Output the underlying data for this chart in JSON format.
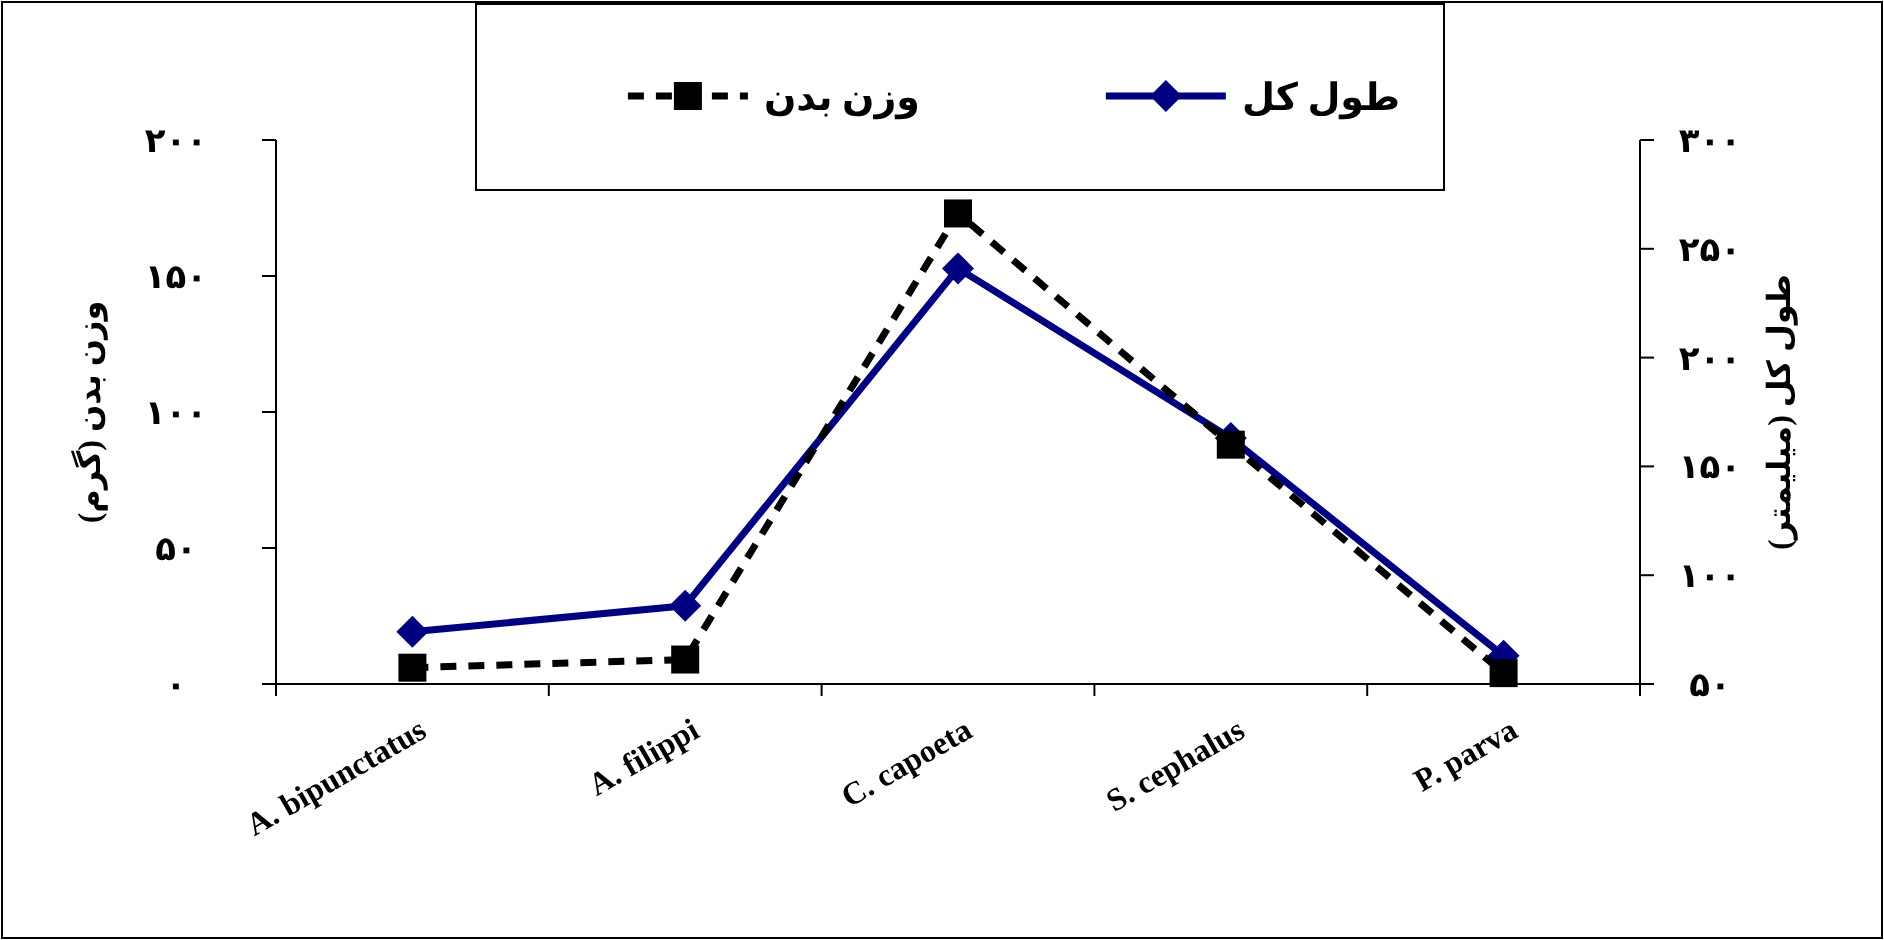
{
  "chart_data": {
    "type": "line",
    "categories": [
      "A. bipunctatus",
      "A. filippi",
      "C. capoeta",
      "S. cephalus",
      "P. parva"
    ],
    "series": [
      {
        "name": "طول کل",
        "color": "#000080",
        "values": [
          74,
          86,
          241,
          163,
          63
        ],
        "marker": "diamond",
        "line_style": "solid",
        "axis": "y2"
      },
      {
        "name": "وزن بدن",
        "color": "#000000",
        "values": [
          6,
          9,
          173,
          88,
          4
        ],
        "marker": "square",
        "line_style": "dashed"
      }
    ],
    "ylabel": "وزن بدن (گرم)",
    "y2label": "طول کل (میلیمتر)",
    "ylim": [
      0,
      200
    ],
    "yticks": [
      {
        "value": 0,
        "label": "۰"
      },
      {
        "value": 50,
        "label": "۵۰"
      },
      {
        "value": 100,
        "label": "۱۰۰"
      },
      {
        "value": 150,
        "label": "۱۵۰"
      },
      {
        "value": 200,
        "label": "۲۰۰"
      }
    ],
    "y2lim": [
      50,
      300
    ],
    "y2ticks": [
      {
        "value": 50,
        "label": "۵۰"
      },
      {
        "value": 100,
        "label": "۱۰۰"
      },
      {
        "value": 150,
        "label": "۱۵۰"
      },
      {
        "value": 200,
        "label": "۲۰۰"
      },
      {
        "value": 250,
        "label": "۲۵۰"
      },
      {
        "value": 300,
        "label": "۳۰۰"
      }
    ],
    "legend": "top",
    "grid": false
  }
}
